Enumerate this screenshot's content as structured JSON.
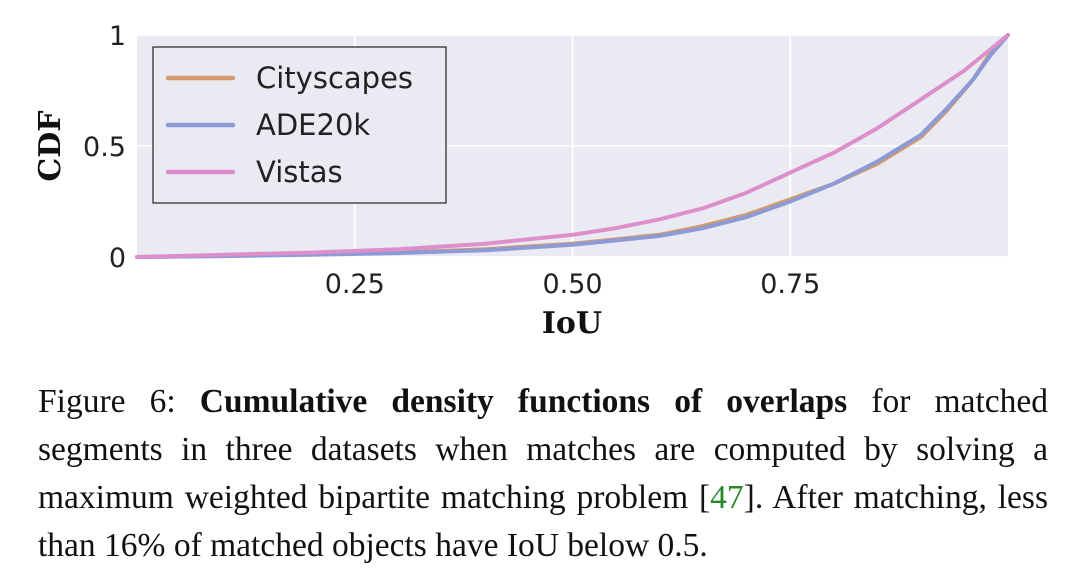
{
  "chart_data": {
    "type": "line",
    "xlabel": "IoU",
    "ylabel": "CDF",
    "xlim": [
      0,
      1
    ],
    "ylim": [
      0,
      1
    ],
    "x_ticks": [
      "0.25",
      "0.50",
      "0.75"
    ],
    "x_tick_values": [
      0.25,
      0.5,
      0.75
    ],
    "y_ticks": [
      "0",
      "0.5",
      "1"
    ],
    "y_tick_values": [
      0,
      0.5,
      1
    ],
    "grid": true,
    "legend_position": "top-left",
    "series": [
      {
        "name": "Cityscapes",
        "color": "#d49a6a",
        "x": [
          0,
          0.1,
          0.2,
          0.3,
          0.4,
          0.5,
          0.6,
          0.65,
          0.7,
          0.75,
          0.8,
          0.85,
          0.9,
          0.93,
          0.96,
          0.98,
          1.0
        ],
        "y": [
          0,
          0.005,
          0.012,
          0.02,
          0.035,
          0.06,
          0.1,
          0.14,
          0.19,
          0.26,
          0.33,
          0.42,
          0.54,
          0.66,
          0.8,
          0.92,
          1.0
        ]
      },
      {
        "name": "ADE20k",
        "color": "#8c9ad8",
        "x": [
          0,
          0.1,
          0.2,
          0.3,
          0.4,
          0.5,
          0.6,
          0.65,
          0.7,
          0.75,
          0.8,
          0.85,
          0.9,
          0.93,
          0.96,
          0.98,
          1.0
        ],
        "y": [
          0,
          0.004,
          0.01,
          0.018,
          0.03,
          0.055,
          0.095,
          0.13,
          0.18,
          0.25,
          0.33,
          0.43,
          0.55,
          0.67,
          0.8,
          0.91,
          1.0
        ]
      },
      {
        "name": "Vistas",
        "color": "#dd8fcc",
        "x": [
          0,
          0.1,
          0.2,
          0.3,
          0.4,
          0.5,
          0.55,
          0.6,
          0.65,
          0.7,
          0.75,
          0.8,
          0.85,
          0.9,
          0.95,
          1.0
        ],
        "y": [
          0,
          0.01,
          0.02,
          0.035,
          0.06,
          0.1,
          0.13,
          0.17,
          0.22,
          0.29,
          0.38,
          0.47,
          0.58,
          0.71,
          0.84,
          1.0
        ]
      }
    ]
  },
  "caption": {
    "prefix": "Figure 6: ",
    "bold": "Cumulative density functions of overlaps",
    "text1": " for matched segments in three datasets when matches are computed by solving a maximum weighted bipartite matching problem [",
    "ref": "47",
    "text2": "]. After matching, less than 16% of matched objects have IoU below 0.5."
  }
}
